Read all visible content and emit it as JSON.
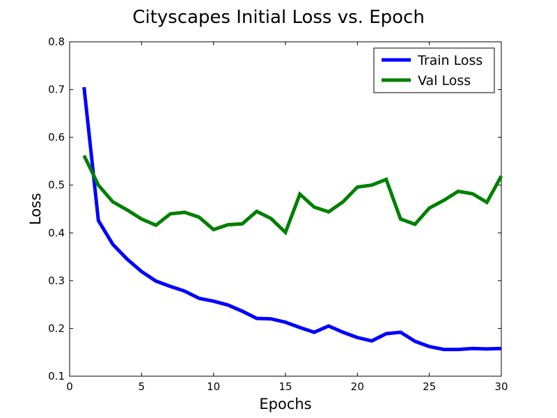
{
  "chart_data": {
    "type": "line",
    "title": "Cityscapes Initial Loss vs. Epoch",
    "xlabel": "Epochs",
    "ylabel": "Loss",
    "xlim": [
      0,
      30
    ],
    "ylim": [
      0.1,
      0.8
    ],
    "xticks": [
      0,
      5,
      10,
      15,
      20,
      25,
      30
    ],
    "yticks": [
      0.1,
      0.2,
      0.3,
      0.4,
      0.5,
      0.6,
      0.7,
      0.8
    ],
    "xtick_labels": [
      "0",
      "5",
      "10",
      "15",
      "20",
      "25",
      "30"
    ],
    "ytick_labels": [
      "0.1",
      "0.2",
      "0.3",
      "0.4",
      "0.5",
      "0.6",
      "0.7",
      "0.8"
    ],
    "grid": false,
    "legend_position": "top-right",
    "x": [
      1,
      2,
      3,
      4,
      5,
      6,
      7,
      8,
      9,
      10,
      11,
      12,
      13,
      14,
      15,
      16,
      17,
      18,
      19,
      20,
      21,
      22,
      23,
      24,
      25,
      26,
      27,
      28,
      29,
      30
    ],
    "series": [
      {
        "name": "Train Loss",
        "color": "#0000ff",
        "values": [
          0.705,
          0.426,
          0.376,
          0.345,
          0.319,
          0.299,
          0.288,
          0.278,
          0.263,
          0.257,
          0.249,
          0.236,
          0.221,
          0.22,
          0.213,
          0.202,
          0.192,
          0.205,
          0.192,
          0.181,
          0.174,
          0.189,
          0.192,
          0.173,
          0.162,
          0.156,
          0.156,
          0.158,
          0.157,
          0.158
        ]
      },
      {
        "name": "Val Loss",
        "color": "#008000",
        "values": [
          0.562,
          0.5,
          0.465,
          0.448,
          0.429,
          0.416,
          0.44,
          0.443,
          0.433,
          0.407,
          0.417,
          0.419,
          0.445,
          0.43,
          0.401,
          0.481,
          0.454,
          0.444,
          0.465,
          0.496,
          0.5,
          0.512,
          0.429,
          0.418,
          0.452,
          0.468,
          0.487,
          0.482,
          0.464,
          0.519
        ]
      }
    ]
  }
}
